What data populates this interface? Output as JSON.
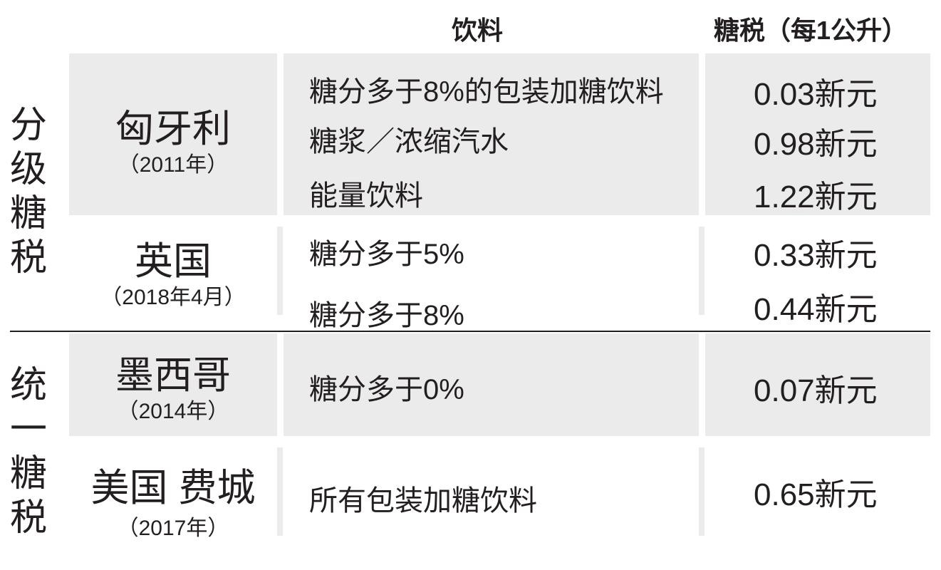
{
  "header": {
    "drink": "饮料",
    "tax": "糖税（每1公升）"
  },
  "groups": {
    "tiered": "分级糖税",
    "uniform": "统一糖税"
  },
  "rows": [
    {
      "country": "匈牙利",
      "year": "（2011年）",
      "items": [
        {
          "drink": "糖分多于8%的包装加糖饮料",
          "tax": "0.03新元"
        },
        {
          "drink": "糖浆／浓缩汽水",
          "tax": "0.98新元"
        },
        {
          "drink": "能量饮料",
          "tax": "1.22新元"
        }
      ]
    },
    {
      "country": "英国",
      "year": "（2018年4月）",
      "items": [
        {
          "drink": "糖分多于5%",
          "tax": "0.33新元"
        },
        {
          "drink": "糖分多于8%",
          "tax": "0.44新元"
        }
      ]
    },
    {
      "country": "墨西哥",
      "year": "（2014年）",
      "items": [
        {
          "drink": "糖分多于0%",
          "tax": "0.07新元"
        }
      ]
    },
    {
      "country": "美国 费城",
      "year": "（2017年）",
      "items": [
        {
          "drink": "所有包装加糖饮料",
          "tax": "0.65新元"
        }
      ]
    }
  ],
  "colors": {
    "cell_bg": "#ebebeb",
    "text": "#231f20"
  }
}
